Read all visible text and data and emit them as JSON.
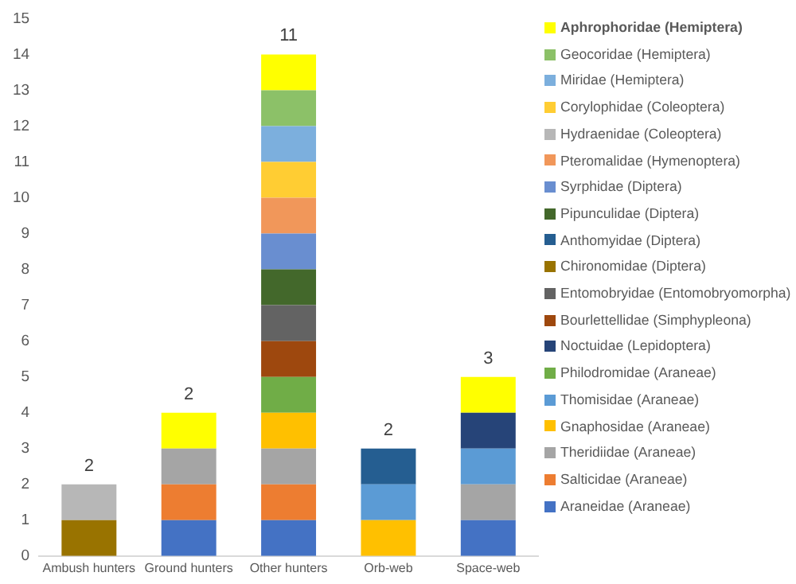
{
  "chart_data": {
    "type": "bar",
    "stacked": true,
    "categories": [
      "Ambush hunters",
      "Ground hunters",
      "Other hunters",
      "Orb-web",
      "Space-web"
    ],
    "series": [
      {
        "name": "Araneidae (Araneae)",
        "color": "#4472c4",
        "values": [
          null,
          1,
          1,
          null,
          1
        ]
      },
      {
        "name": "Salticidae (Araneae)",
        "color": "#ed7d31",
        "values": [
          null,
          1,
          1,
          null,
          null
        ]
      },
      {
        "name": "Theridiidae (Araneae)",
        "color": "#a5a5a5",
        "values": [
          null,
          1,
          1,
          null,
          1
        ]
      },
      {
        "name": "Gnaphosidae (Araneae)",
        "color": "#ffc000",
        "values": [
          null,
          null,
          1,
          1,
          null
        ]
      },
      {
        "name": "Thomisidae (Araneae)",
        "color": "#5b9bd5",
        "values": [
          null,
          null,
          null,
          1,
          1
        ]
      },
      {
        "name": "Philodromidae (Araneae)",
        "color": "#70ad47",
        "values": [
          null,
          null,
          1,
          null,
          null
        ]
      },
      {
        "name": "Noctuidae (Lepidoptera)",
        "color": "#264478",
        "values": [
          null,
          null,
          null,
          null,
          1
        ]
      },
      {
        "name": "Bourlettellidae (Simphypleona)",
        "color": "#9e480e",
        "values": [
          null,
          null,
          1,
          null,
          null
        ]
      },
      {
        "name": "Entomobryidae (Entomobryomorpha)",
        "color": "#636363",
        "values": [
          null,
          null,
          1,
          null,
          null
        ]
      },
      {
        "name": "Chironomidae (Diptera)",
        "color": "#997300",
        "values": [
          1,
          null,
          null,
          null,
          null
        ]
      },
      {
        "name": "Anthomyidae (Diptera)",
        "color": "#255e91",
        "values": [
          null,
          null,
          null,
          1,
          null
        ]
      },
      {
        "name": "Pipunculidae (Diptera)",
        "color": "#43682b",
        "values": [
          null,
          null,
          1,
          null,
          null
        ]
      },
      {
        "name": "Syrphidae (Diptera)",
        "color": "#698ed0",
        "values": [
          null,
          null,
          1,
          null,
          null
        ]
      },
      {
        "name": "Pteromalidae (Hymenoptera)",
        "color": "#f1975a",
        "values": [
          null,
          null,
          1,
          null,
          null
        ]
      },
      {
        "name": "Hydraenidae (Coleoptera)",
        "color": "#b7b7b7",
        "values": [
          1,
          null,
          null,
          null,
          null
        ]
      },
      {
        "name": "Corylophidae (Coleoptera)",
        "color": "#ffcd33",
        "values": [
          null,
          null,
          1,
          null,
          null
        ]
      },
      {
        "name": "Miridae (Hemiptera)",
        "color": "#7cafdd",
        "values": [
          null,
          null,
          1,
          null,
          null
        ]
      },
      {
        "name": "Geocoridae (Hemiptera)",
        "color": "#8cc168",
        "values": [
          null,
          null,
          1,
          null,
          null
        ]
      },
      {
        "name": "Aphrophoridae (Hemiptera)",
        "color": "#ffff00",
        "values": [
          null,
          1,
          1,
          null,
          1
        ]
      }
    ],
    "totals": [
      "2",
      "2",
      "11",
      "2",
      "3"
    ],
    "ylim": [
      0,
      15
    ],
    "yticks": [
      0,
      1,
      2,
      3,
      4,
      5,
      6,
      7,
      8,
      9,
      10,
      11,
      12,
      13,
      14,
      15
    ],
    "grid": false,
    "legend": "right"
  }
}
